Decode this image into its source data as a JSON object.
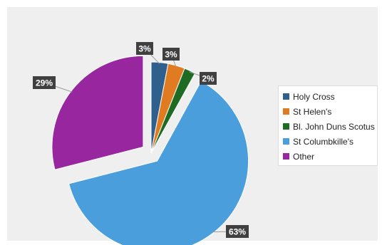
{
  "chart_data": {
    "type": "pie",
    "title": "",
    "legend_position": "right",
    "categories": [
      "Holy Cross",
      "St Helen's",
      "Bl. John Duns Scotus",
      "St Columbkille's",
      "Other"
    ],
    "values": [
      3,
      3,
      2,
      63,
      29
    ],
    "data_labels": [
      "3%",
      "3%",
      "2%",
      "63%",
      "29%"
    ],
    "colors": [
      "#2f5f8c",
      "#e07b22",
      "#1e6b23",
      "#4a9edb",
      "#98279f"
    ],
    "exploded_slices": [
      "St Columbkille's",
      "Other"
    ]
  }
}
